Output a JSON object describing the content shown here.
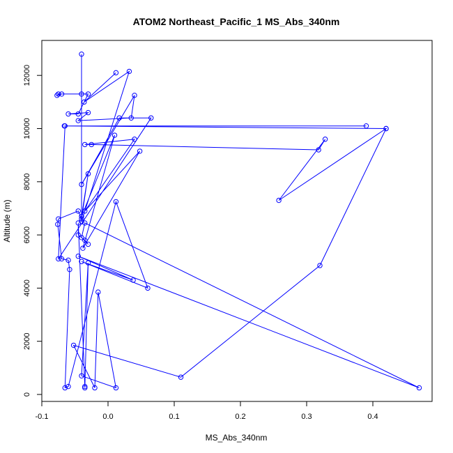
{
  "chart_data": {
    "type": "line",
    "title": "ATOM2 Northeast_Pacific_1 MS_Abs_340nm",
    "xlabel": "MS_Abs_340nm",
    "ylabel": "Altitude (m)",
    "xlim": [
      -0.1,
      0.48
    ],
    "ylim": [
      0,
      12800
    ],
    "x_ticks": [
      "-0.1",
      "0.0",
      "0.1",
      "0.2",
      "0.3",
      "0.4"
    ],
    "y_ticks": [
      "0",
      "2000",
      "4000",
      "6000",
      "8000",
      "10000",
      "12000"
    ],
    "series_color": "#0000ff",
    "points": [
      {
        "x": 0.012,
        "y": 12100
      },
      {
        "x": -0.036,
        "y": 11000
      },
      {
        "x": 0.032,
        "y": 12150
      },
      {
        "x": -0.04,
        "y": 6500
      },
      {
        "x": -0.04,
        "y": 12800
      },
      {
        "x": -0.04,
        "y": 11300
      },
      {
        "x": -0.075,
        "y": 11300
      },
      {
        "x": -0.077,
        "y": 11250
      },
      {
        "x": -0.07,
        "y": 11300
      },
      {
        "x": -0.03,
        "y": 11300
      },
      {
        "x": -0.045,
        "y": 10550
      },
      {
        "x": -0.06,
        "y": 10550
      },
      {
        "x": -0.03,
        "y": 10600
      },
      {
        "x": -0.045,
        "y": 10300
      },
      {
        "x": 0.035,
        "y": 10400
      },
      {
        "x": 0.04,
        "y": 11250
      },
      {
        "x": -0.04,
        "y": 7900
      },
      {
        "x": 0.017,
        "y": 10400
      },
      {
        "x": 0.065,
        "y": 10400
      },
      {
        "x": -0.075,
        "y": 5100
      },
      {
        "x": -0.065,
        "y": 10100
      },
      {
        "x": 0.39,
        "y": 10100
      },
      {
        "x": -0.066,
        "y": 10100
      },
      {
        "x": 0.42,
        "y": 10000
      },
      {
        "x": 0.258,
        "y": 7300
      },
      {
        "x": 0.328,
        "y": 9600
      },
      {
        "x": 0.318,
        "y": 9200
      },
      {
        "x": -0.025,
        "y": 9400
      },
      {
        "x": -0.035,
        "y": 9400
      },
      {
        "x": 0.04,
        "y": 9600
      },
      {
        "x": -0.035,
        "y": 6900
      },
      {
        "x": 0.048,
        "y": 9150
      },
      {
        "x": -0.038,
        "y": 5500
      },
      {
        "x": 0.01,
        "y": 9750
      },
      {
        "x": -0.04,
        "y": 6700
      },
      {
        "x": -0.03,
        "y": 8300
      },
      {
        "x": -0.04,
        "y": 6600
      },
      {
        "x": -0.045,
        "y": 6900
      },
      {
        "x": -0.075,
        "y": 6600
      },
      {
        "x": -0.076,
        "y": 6400
      },
      {
        "x": -0.07,
        "y": 5100
      },
      {
        "x": -0.06,
        "y": 5050
      },
      {
        "x": -0.058,
        "y": 4700
      },
      {
        "x": -0.065,
        "y": 250
      },
      {
        "x": -0.06,
        "y": 300
      },
      {
        "x": 0.012,
        "y": 7250
      },
      {
        "x": 0.06,
        "y": 4000
      },
      {
        "x": -0.04,
        "y": 5000
      },
      {
        "x": 0.038,
        "y": 4300
      },
      {
        "x": -0.045,
        "y": 5200
      },
      {
        "x": 0.47,
        "y": 250
      },
      {
        "x": -0.035,
        "y": 6450
      },
      {
        "x": -0.04,
        "y": 5900
      },
      {
        "x": -0.03,
        "y": 5650
      },
      {
        "x": -0.035,
        "y": 5800
      },
      {
        "x": -0.045,
        "y": 6000
      },
      {
        "x": -0.045,
        "y": 6450
      },
      {
        "x": -0.035,
        "y": 250
      },
      {
        "x": -0.035,
        "y": 300
      },
      {
        "x": -0.03,
        "y": 4950
      },
      {
        "x": -0.04,
        "y": 700
      },
      {
        "x": 0.012,
        "y": 250
      },
      {
        "x": -0.015,
        "y": 3850
      },
      {
        "x": -0.02,
        "y": 250
      },
      {
        "x": -0.052,
        "y": 1850
      },
      {
        "x": 0.11,
        "y": 650
      },
      {
        "x": 0.32,
        "y": 4850
      },
      {
        "x": 0.42,
        "y": 10000
      }
    ]
  }
}
